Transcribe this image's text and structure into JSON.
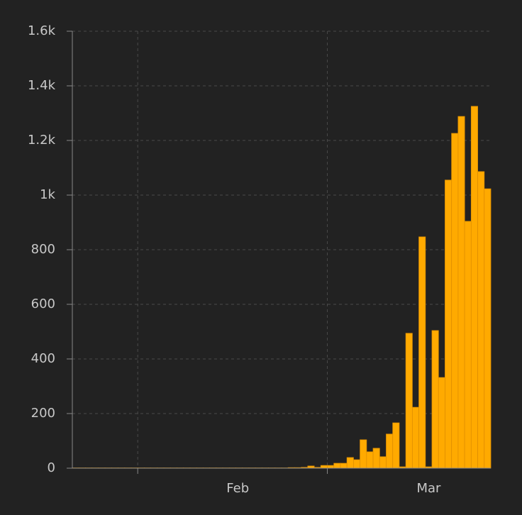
{
  "chart_data": {
    "type": "bar",
    "values": [
      1,
      1,
      1,
      1,
      1,
      1,
      1,
      1,
      1,
      1,
      1,
      1,
      1,
      1,
      1,
      1,
      1,
      1,
      1,
      1,
      1,
      1,
      1,
      1,
      1,
      1,
      1,
      1,
      1,
      1,
      1,
      1,
      1,
      2,
      2,
      3,
      8,
      3,
      10,
      10,
      18,
      18,
      39,
      31,
      104,
      60,
      73,
      42,
      125,
      166,
      5,
      494,
      223,
      847,
      5,
      504,
      332,
      1055,
      1226,
      1288,
      904,
      1325,
      1086,
      1023
    ],
    "color": "#ffaa00",
    "edge": "#e08f00",
    "xlim": [
      0,
      64
    ],
    "xgrid": [
      10,
      39
    ],
    "xtick_labels": [
      {
        "value": 25.3,
        "label": "Feb"
      },
      {
        "value": 54.5,
        "label": "Mar"
      }
    ],
    "ylim": [
      0,
      1600
    ],
    "yticks": [
      0,
      200,
      400,
      600,
      800,
      {
        "value": 1000,
        "label": "1k"
      },
      {
        "value": 1200,
        "label": "1.2k"
      },
      {
        "value": 1400,
        "label": "1.4k"
      },
      {
        "value": 1600,
        "label": "1.6k"
      }
    ],
    "grid": true
  }
}
